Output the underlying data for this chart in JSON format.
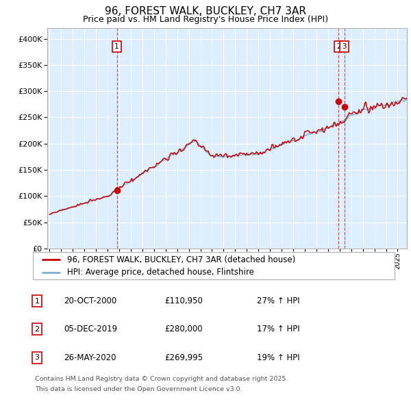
{
  "title": "96, FOREST WALK, BUCKLEY, CH7 3AR",
  "subtitle": "Price paid vs. HM Land Registry's House Price Index (HPI)",
  "legend_line1": "96, FOREST WALK, BUCKLEY, CH7 3AR (detached house)",
  "legend_line2": "HPI: Average price, detached house, Flintshire",
  "footer_line1": "Contains HM Land Registry data © Crown copyright and database right 2025.",
  "footer_line2": "This data is licensed under the Open Government Licence v3.0.",
  "transactions": [
    {
      "num": "1",
      "date": "20-OCT-2000",
      "price": 110950,
      "hpi_pct": "27% ↑ HPI",
      "year": 2000.8
    },
    {
      "num": "2",
      "date": "05-DEC-2019",
      "price": 280000,
      "hpi_pct": "17% ↑ HPI",
      "year": 2019.92
    },
    {
      "num": "3",
      "date": "26-MAY-2020",
      "price": 269995,
      "hpi_pct": "19% ↑ HPI",
      "year": 2020.4
    }
  ],
  "red_color": "#cc0000",
  "blue_color": "#7aadd4",
  "dashed_color": "#cc0000",
  "bg_color": "#ddeeff",
  "plot_bg": "#ffffff",
  "ylim": [
    0,
    420000
  ],
  "xlim_start": 1994.8,
  "xlim_end": 2025.8
}
